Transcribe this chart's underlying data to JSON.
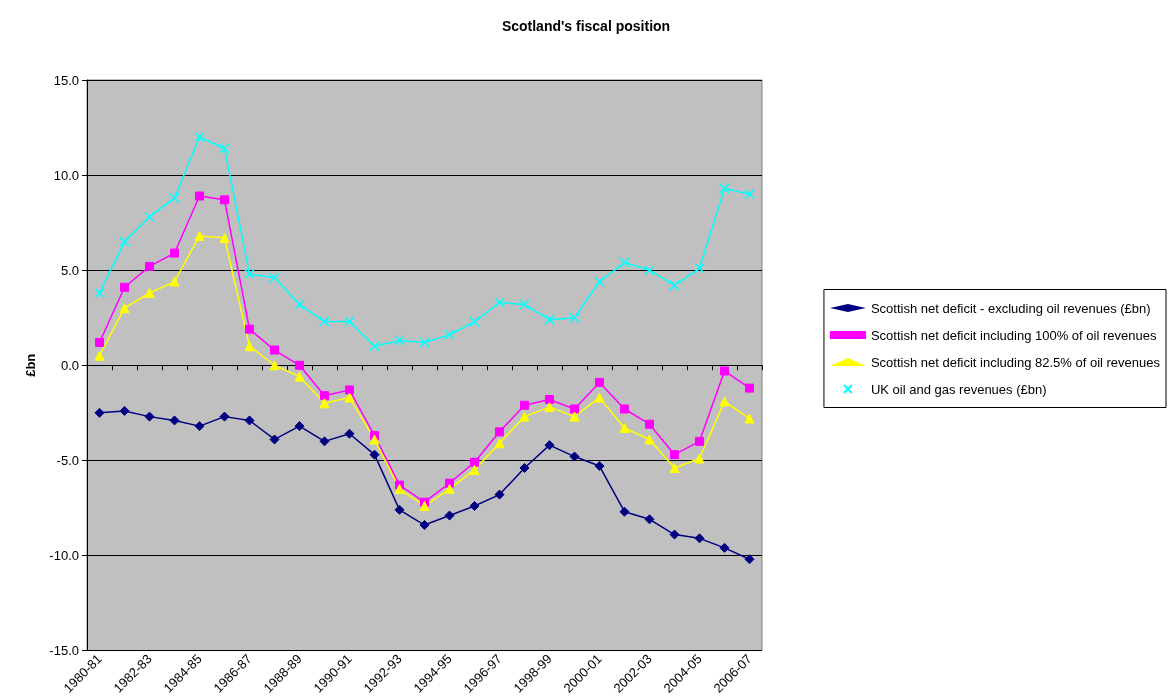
{
  "chart_data": {
    "type": "line",
    "title": "Scotland's fiscal position",
    "ylabel": "£bn",
    "categories": [
      "1980-81",
      null,
      "1982-83",
      null,
      "1984-85",
      null,
      "1986-87",
      null,
      "1988-89",
      null,
      "1990-91",
      null,
      "1992-93",
      null,
      "1994-95",
      null,
      "1996-97",
      null,
      "1998-99",
      null,
      "2000-01",
      null,
      "2002-03",
      null,
      "2004-05",
      null,
      "2006-07"
    ],
    "series": [
      {
        "name": "Scottish net deficit - excluding oil revenues (£bn)",
        "color": "#000080",
        "marker": "diamond",
        "values": [
          -2.5,
          -2.4,
          -2.7,
          -2.9,
          -3.2,
          -2.7,
          -2.9,
          -3.9,
          -3.2,
          -4.0,
          -3.6,
          -4.7,
          -7.6,
          -8.4,
          -7.9,
          -7.4,
          -6.8,
          -5.4,
          -4.2,
          -4.8,
          -5.3,
          -7.7,
          -8.1,
          -8.9,
          -9.1,
          -9.6,
          -10.2
        ]
      },
      {
        "name": "Scottish net deficit including 100% of oil revenues",
        "color": "#ff00ff",
        "marker": "square",
        "values": [
          1.2,
          4.1,
          5.2,
          5.9,
          8.9,
          8.7,
          1.9,
          0.8,
          0.0,
          -1.6,
          -1.3,
          -3.7,
          -6.3,
          -7.2,
          -6.2,
          -5.1,
          -3.5,
          -2.1,
          -1.8,
          -2.3,
          -0.9,
          -2.3,
          -3.1,
          -4.7,
          -4.0,
          -0.3,
          -1.2
        ]
      },
      {
        "name": "Scottish net deficit including 82.5% of oil revenues",
        "color": "#ffff00",
        "marker": "triangle",
        "values": [
          0.5,
          3.0,
          3.8,
          4.4,
          6.8,
          6.7,
          1.0,
          0.0,
          -0.6,
          -2.0,
          -1.7,
          -3.9,
          -6.5,
          -7.4,
          -6.5,
          -5.5,
          -4.1,
          -2.7,
          -2.2,
          -2.7,
          -1.7,
          -3.3,
          -3.9,
          -5.4,
          -4.9,
          -1.9,
          -2.8
        ]
      },
      {
        "name": "UK oil and gas revenues (£bn)",
        "color": "#00ffff",
        "marker": "cross",
        "values": [
          3.8,
          6.5,
          7.8,
          8.8,
          12.0,
          11.4,
          4.8,
          4.6,
          3.2,
          2.3,
          2.3,
          1.0,
          1.3,
          1.2,
          1.6,
          2.3,
          3.3,
          3.2,
          2.4,
          2.5,
          4.4,
          5.4,
          5.0,
          4.2,
          5.1,
          9.3,
          9.0
        ]
      }
    ],
    "ylim": [
      -15,
      15
    ],
    "yticks": [
      {
        "value": -15,
        "label": "-15.0"
      },
      {
        "value": -10,
        "label": "-10.0"
      },
      {
        "value": -5,
        "label": "-5.0"
      },
      {
        "value": 0,
        "label": "0.0"
      },
      {
        "value": 5,
        "label": "5.0"
      },
      {
        "value": 10,
        "label": "10.0"
      },
      {
        "value": 15,
        "label": "15.0"
      }
    ],
    "grid": "y",
    "legend": "right",
    "line_style": "solid"
  }
}
